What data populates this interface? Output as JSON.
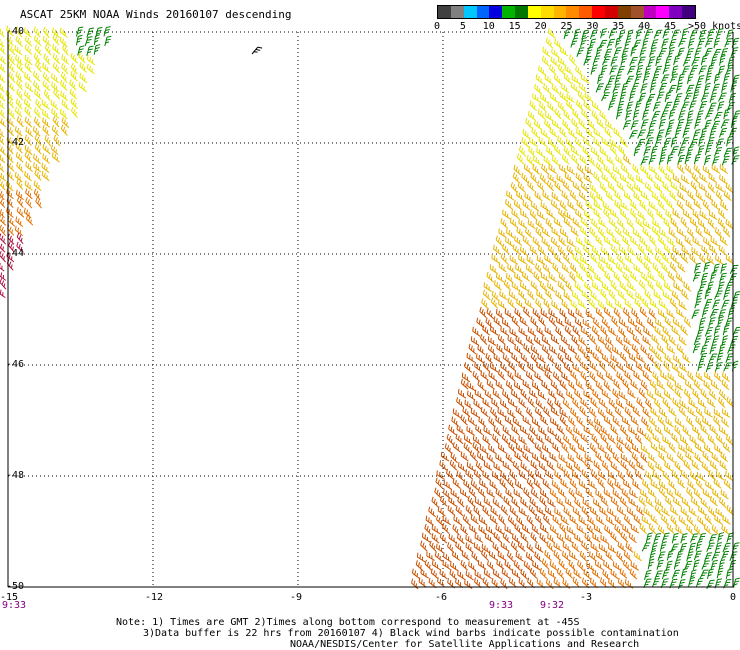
{
  "title": "ASCAT 25KM NOAA Winds 20160107 descending",
  "legend": {
    "labels": [
      "0",
      "5",
      "10",
      "15",
      "20",
      "25",
      "30",
      "35",
      "40",
      "45",
      ">50 knots"
    ],
    "colors": [
      "#404040",
      "#808080",
      "#00c8ff",
      "#0064ff",
      "#0000e0",
      "#00b400",
      "#007800",
      "#ffff00",
      "#ffdc00",
      "#ffb400",
      "#ff8c00",
      "#ff5a00",
      "#ff0000",
      "#d20000",
      "#804000",
      "#a0522d",
      "#c000c0",
      "#ff00ff",
      "#8000c0",
      "#400080"
    ]
  },
  "map": {
    "lon_range": [
      -15,
      0
    ],
    "lat_range": [
      -50,
      -40
    ],
    "lon_ticks": [
      "-15",
      "-12",
      "-9",
      "-6",
      "-3",
      "0"
    ],
    "lat_ticks": [
      "-40",
      "-42",
      "-44",
      "-46",
      "-48",
      "-50"
    ],
    "time_labels": [
      "9:33",
      "9:33",
      "9:32"
    ],
    "barb_colors": {
      "green": "#008000",
      "yellow": "#e6e600",
      "gold": "#e6b400",
      "orange": "#e07000",
      "darkorange": "#c85000",
      "crimson": "#b01040"
    }
  },
  "notes": [
    "Note: 1) Times are GMT 2)Times along bottom correspond to measurement at -45S",
    "3)Data buffer is 22 hrs from 20160107 4) Black wind barbs indicate possible contamination",
    "NOAA/NESDIS/Center for Satellite Applications and Research"
  ]
}
